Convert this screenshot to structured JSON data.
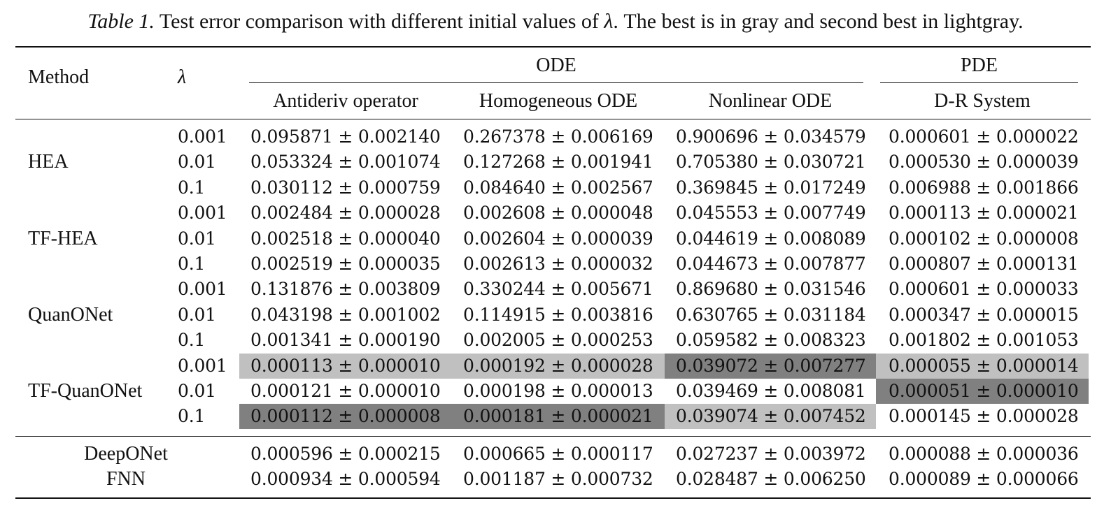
{
  "caption": {
    "label": "Table 1.",
    "text_before": " Test error comparison with different initial values of ",
    "symbol": "λ",
    "text_after": ". The best is in gray and second best in lightgray."
  },
  "header": {
    "method": "Method",
    "lambda": "λ",
    "group_ode": "ODE",
    "group_pde": "PDE",
    "columns": [
      "Antideriv operator",
      "Homogeneous ODE",
      "Nonlinear ODE",
      "D-R System"
    ]
  },
  "groups": [
    {
      "method": "HEA",
      "rows": [
        {
          "lambda": "0.001",
          "values": [
            "0.095871 ± 0.002140",
            "0.267378 ± 0.006169",
            "0.900696 ± 0.034579",
            "0.000601 ± 0.000022"
          ]
        },
        {
          "lambda": "0.01",
          "values": [
            "0.053324 ± 0.001074",
            "0.127268 ± 0.001941",
            "0.705380 ± 0.030721",
            "0.000530 ± 0.000039"
          ]
        },
        {
          "lambda": "0.1",
          "values": [
            "0.030112 ± 0.000759",
            "0.084640 ± 0.002567",
            "0.369845 ± 0.017249",
            "0.006988 ± 0.001866"
          ]
        }
      ]
    },
    {
      "method": "TF-HEA",
      "rows": [
        {
          "lambda": "0.001",
          "values": [
            "0.002484 ± 0.000028",
            "0.002608 ± 0.000048",
            "0.045553 ± 0.007749",
            "0.000113 ± 0.000021"
          ]
        },
        {
          "lambda": "0.01",
          "values": [
            "0.002518 ± 0.000040",
            "0.002604 ± 0.000039",
            "0.044619 ± 0.008089",
            "0.000102 ± 0.000008"
          ]
        },
        {
          "lambda": "0.1",
          "values": [
            "0.002519 ± 0.000035",
            "0.002613 ± 0.000032",
            "0.044673 ± 0.007877",
            "0.000807 ± 0.000131"
          ]
        }
      ]
    },
    {
      "method": "QuanONet",
      "rows": [
        {
          "lambda": "0.001",
          "values": [
            "0.131876 ± 0.003809",
            "0.330244 ± 0.005671",
            "0.869680 ± 0.031546",
            "0.000601 ± 0.000033"
          ]
        },
        {
          "lambda": "0.01",
          "values": [
            "0.043198 ± 0.001002",
            "0.114915 ± 0.003816",
            "0.630765 ± 0.031184",
            "0.000347 ± 0.000015"
          ]
        },
        {
          "lambda": "0.1",
          "values": [
            "0.001341 ± 0.000190",
            "0.002005 ± 0.000253",
            "0.059582 ± 0.008323",
            "0.001802 ± 0.001053"
          ]
        }
      ]
    },
    {
      "method": "TF-QuanONet",
      "rows": [
        {
          "lambda": "0.001",
          "values": [
            "0.000113 ± 0.000010",
            "0.000192 ± 0.000028",
            "0.039072 ± 0.007277",
            "0.000055 ± 0.000014"
          ],
          "shade": [
            "light",
            "light",
            "dark",
            "light"
          ]
        },
        {
          "lambda": "0.01",
          "values": [
            "0.000121 ± 0.000010",
            "0.000198 ± 0.000013",
            "0.039469 ± 0.008081",
            "0.000051 ± 0.000010"
          ],
          "shade": [
            "",
            "",
            "",
            "dark"
          ]
        },
        {
          "lambda": "0.1",
          "values": [
            "0.000112 ± 0.000008",
            "0.000181 ± 0.000021",
            "0.039074 ± 0.007452",
            "0.000145 ± 0.000028"
          ],
          "shade": [
            "dark",
            "dark",
            "light",
            ""
          ]
        }
      ]
    }
  ],
  "baselines": [
    {
      "method": "DeepONet",
      "values": [
        "0.000596 ± 0.000215",
        "0.000665 ± 0.000117",
        "0.027237 ± 0.003972",
        "0.000088 ± 0.000036"
      ]
    },
    {
      "method": "FNN",
      "values": [
        "0.000934 ± 0.000594",
        "0.001187 ± 0.000732",
        "0.028487 ± 0.006250",
        "0.000089 ± 0.000066"
      ]
    }
  ],
  "colors": {
    "best": "#808080",
    "second_best": "#c0c0c0"
  }
}
